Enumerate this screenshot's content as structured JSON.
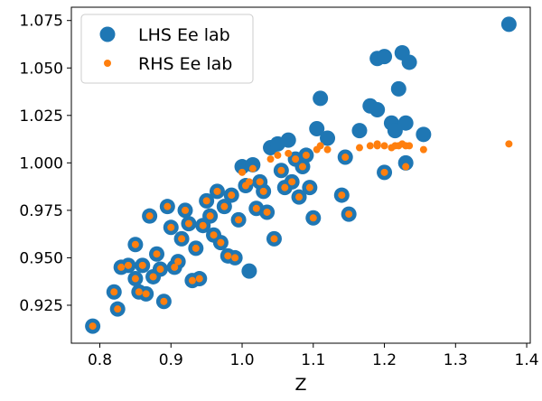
{
  "chart_data": {
    "type": "scatter",
    "title": "",
    "xlabel": "Z",
    "ylabel": "",
    "xlim": [
      0.76,
      1.405
    ],
    "ylim": [
      0.905,
      1.082
    ],
    "xticks": [
      0.8,
      0.9,
      1.0,
      1.1,
      1.2,
      1.3,
      1.4
    ],
    "xtick_labels": [
      "0.8",
      "0.9",
      "1.0",
      "1.1",
      "1.2",
      "1.3",
      "1.4"
    ],
    "yticks": [
      0.925,
      0.95,
      0.975,
      1.0,
      1.025,
      1.05,
      1.075
    ],
    "ytick_labels": [
      "0.925",
      "0.950",
      "0.975",
      "1.000",
      "1.025",
      "1.050",
      "1.075"
    ],
    "grid": false,
    "legend_position": "top-left",
    "series": [
      {
        "name": "LHS Ee lab",
        "color": "#1f77b4",
        "marker": "large-circle",
        "points": [
          [
            0.79,
            0.914
          ],
          [
            0.82,
            0.932
          ],
          [
            0.825,
            0.923
          ],
          [
            0.83,
            0.945
          ],
          [
            0.84,
            0.946
          ],
          [
            0.85,
            0.957
          ],
          [
            0.85,
            0.939
          ],
          [
            0.855,
            0.932
          ],
          [
            0.86,
            0.946
          ],
          [
            0.865,
            0.931
          ],
          [
            0.87,
            0.972
          ],
          [
            0.875,
            0.94
          ],
          [
            0.88,
            0.952
          ],
          [
            0.885,
            0.944
          ],
          [
            0.89,
            0.927
          ],
          [
            0.895,
            0.977
          ],
          [
            0.9,
            0.966
          ],
          [
            0.905,
            0.945
          ],
          [
            0.91,
            0.948
          ],
          [
            0.915,
            0.96
          ],
          [
            0.92,
            0.975
          ],
          [
            0.925,
            0.968
          ],
          [
            0.93,
            0.938
          ],
          [
            0.935,
            0.955
          ],
          [
            0.94,
            0.939
          ],
          [
            0.945,
            0.967
          ],
          [
            0.95,
            0.98
          ],
          [
            0.955,
            0.972
          ],
          [
            0.96,
            0.962
          ],
          [
            0.965,
            0.985
          ],
          [
            0.97,
            0.958
          ],
          [
            0.975,
            0.977
          ],
          [
            0.98,
            0.951
          ],
          [
            0.985,
            0.983
          ],
          [
            0.99,
            0.95
          ],
          [
            0.995,
            0.97
          ],
          [
            1.0,
            0.998
          ],
          [
            1.005,
            0.988
          ],
          [
            1.01,
            0.943
          ],
          [
            1.015,
            0.999
          ],
          [
            1.02,
            0.976
          ],
          [
            1.025,
            0.99
          ],
          [
            1.03,
            0.985
          ],
          [
            1.035,
            0.974
          ],
          [
            1.04,
            1.008
          ],
          [
            1.045,
            0.96
          ],
          [
            1.05,
            1.01
          ],
          [
            1.055,
            0.996
          ],
          [
            1.06,
            0.987
          ],
          [
            1.065,
            1.012
          ],
          [
            1.07,
            0.99
          ],
          [
            1.075,
            1.002
          ],
          [
            1.08,
            0.982
          ],
          [
            1.085,
            0.998
          ],
          [
            1.09,
            1.004
          ],
          [
            1.095,
            0.987
          ],
          [
            1.1,
            0.971
          ],
          [
            1.105,
            1.018
          ],
          [
            1.11,
            1.034
          ],
          [
            1.12,
            1.013
          ],
          [
            1.14,
            0.983
          ],
          [
            1.145,
            1.003
          ],
          [
            1.15,
            0.973
          ],
          [
            1.165,
            1.017
          ],
          [
            1.18,
            1.03
          ],
          [
            1.19,
            1.028
          ],
          [
            1.19,
            1.055
          ],
          [
            1.2,
            1.056
          ],
          [
            1.2,
            0.995
          ],
          [
            1.21,
            1.021
          ],
          [
            1.215,
            1.017
          ],
          [
            1.22,
            1.039
          ],
          [
            1.225,
            1.058
          ],
          [
            1.23,
            1.021
          ],
          [
            1.23,
            1.0
          ],
          [
            1.235,
            1.053
          ],
          [
            1.255,
            1.015
          ],
          [
            1.375,
            1.073
          ]
        ]
      },
      {
        "name": "RHS Ee lab",
        "color": "#ff7f0e",
        "marker": "small-circle",
        "points": [
          [
            0.79,
            0.914
          ],
          [
            0.82,
            0.932
          ],
          [
            0.825,
            0.923
          ],
          [
            0.83,
            0.945
          ],
          [
            0.84,
            0.946
          ],
          [
            0.85,
            0.957
          ],
          [
            0.85,
            0.939
          ],
          [
            0.855,
            0.932
          ],
          [
            0.86,
            0.946
          ],
          [
            0.865,
            0.931
          ],
          [
            0.87,
            0.972
          ],
          [
            0.875,
            0.94
          ],
          [
            0.88,
            0.952
          ],
          [
            0.885,
            0.944
          ],
          [
            0.89,
            0.927
          ],
          [
            0.895,
            0.977
          ],
          [
            0.9,
            0.966
          ],
          [
            0.905,
            0.945
          ],
          [
            0.91,
            0.948
          ],
          [
            0.915,
            0.96
          ],
          [
            0.92,
            0.975
          ],
          [
            0.925,
            0.968
          ],
          [
            0.93,
            0.938
          ],
          [
            0.935,
            0.955
          ],
          [
            0.94,
            0.939
          ],
          [
            0.945,
            0.967
          ],
          [
            0.95,
            0.98
          ],
          [
            0.955,
            0.972
          ],
          [
            0.96,
            0.962
          ],
          [
            0.965,
            0.985
          ],
          [
            0.97,
            0.958
          ],
          [
            0.975,
            0.977
          ],
          [
            0.98,
            0.951
          ],
          [
            0.985,
            0.983
          ],
          [
            0.99,
            0.95
          ],
          [
            0.995,
            0.97
          ],
          [
            1.0,
            0.995
          ],
          [
            1.005,
            0.988
          ],
          [
            1.01,
            0.99
          ],
          [
            1.015,
            0.997
          ],
          [
            1.02,
            0.976
          ],
          [
            1.025,
            0.99
          ],
          [
            1.03,
            0.985
          ],
          [
            1.035,
            0.974
          ],
          [
            1.04,
            1.002
          ],
          [
            1.045,
            0.96
          ],
          [
            1.05,
            1.004
          ],
          [
            1.055,
            0.996
          ],
          [
            1.06,
            0.987
          ],
          [
            1.065,
            1.005
          ],
          [
            1.07,
            0.99
          ],
          [
            1.075,
            1.002
          ],
          [
            1.08,
            0.982
          ],
          [
            1.085,
            0.998
          ],
          [
            1.09,
            1.004
          ],
          [
            1.095,
            0.987
          ],
          [
            1.1,
            0.971
          ],
          [
            1.105,
            1.007
          ],
          [
            1.11,
            1.009
          ],
          [
            1.12,
            1.007
          ],
          [
            1.14,
            0.983
          ],
          [
            1.145,
            1.003
          ],
          [
            1.15,
            0.973
          ],
          [
            1.165,
            1.008
          ],
          [
            1.18,
            1.009
          ],
          [
            1.19,
            1.009
          ],
          [
            1.19,
            1.01
          ],
          [
            1.2,
            1.009
          ],
          [
            1.2,
            0.995
          ],
          [
            1.21,
            1.008
          ],
          [
            1.215,
            1.009
          ],
          [
            1.22,
            1.009
          ],
          [
            1.225,
            1.01
          ],
          [
            1.23,
            1.009
          ],
          [
            1.23,
            0.998
          ],
          [
            1.235,
            1.009
          ],
          [
            1.255,
            1.007
          ],
          [
            1.375,
            1.01
          ]
        ]
      }
    ]
  }
}
